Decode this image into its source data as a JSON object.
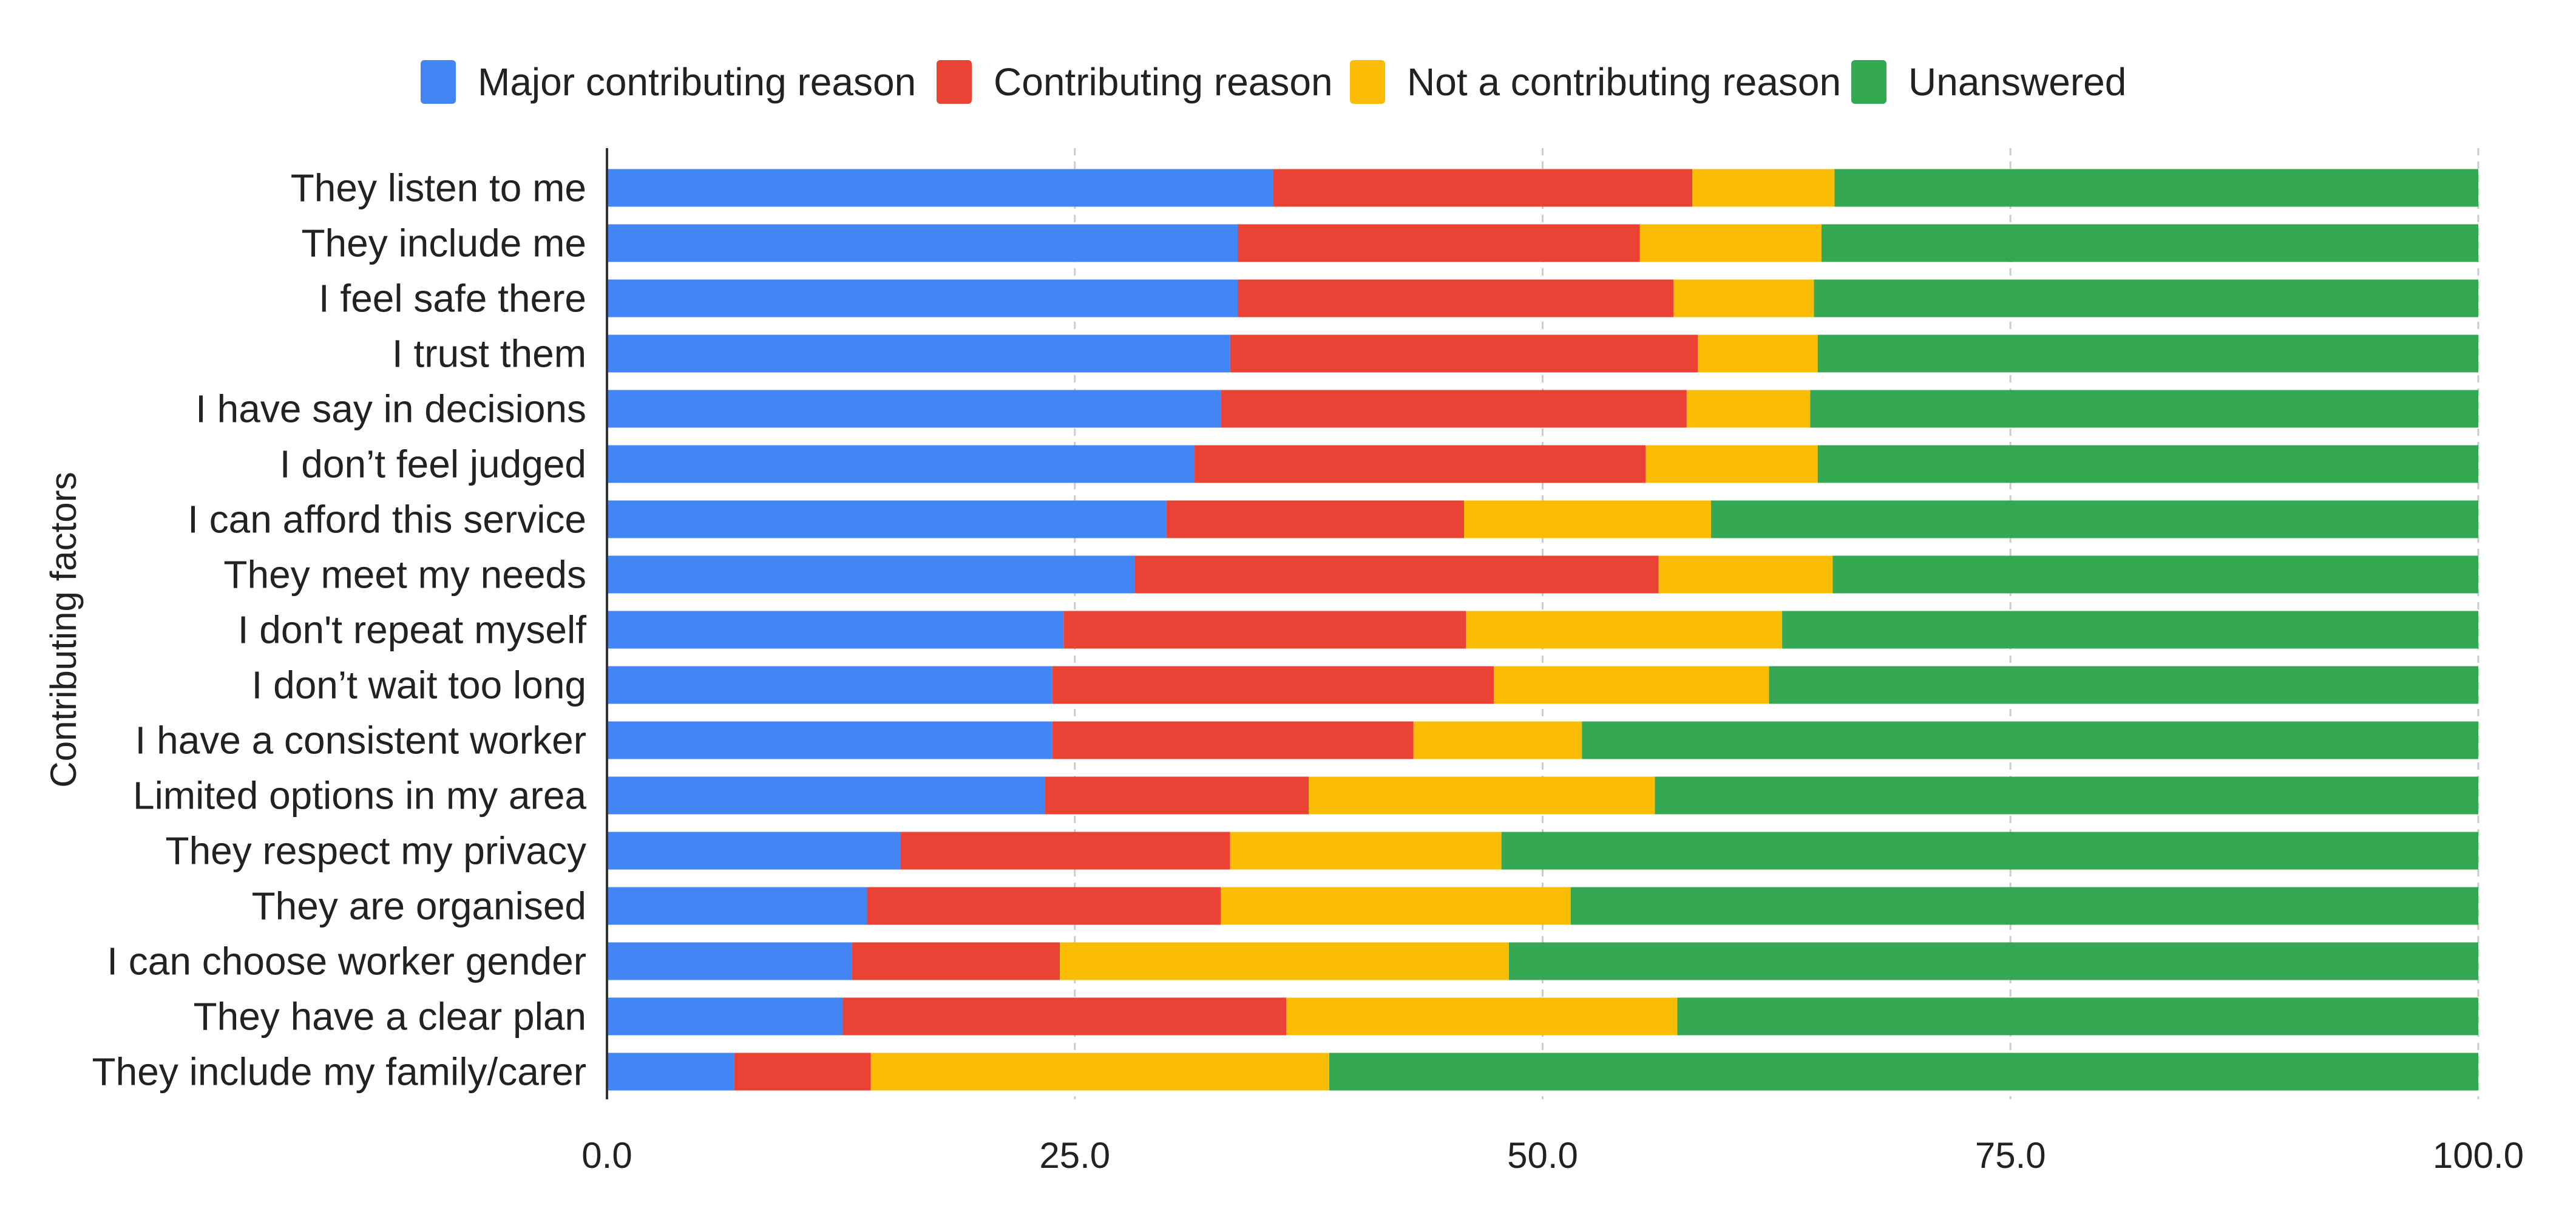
{
  "chart_data": {
    "type": "stacked-bar-horizontal",
    "title": "",
    "ylabel": "Contributing factors",
    "xlabel": "",
    "xlim": [
      0,
      100
    ],
    "x_ticks": [
      "0.0",
      "25.0",
      "50.0",
      "75.0",
      "100.0"
    ],
    "x_tick_values": [
      0,
      25,
      50,
      75,
      100
    ],
    "grid": "vertical dashed",
    "legend_position": "top",
    "categories": [
      "They listen to me",
      "They include me",
      "I feel safe there",
      "I trust them",
      "I have say in decisions",
      "I don’t feel judged",
      "I can afford this service",
      "They meet my needs",
      "I don't repeat myself",
      "I don’t wait too long",
      "I have a consistent worker",
      "Limited options in my area",
      "They respect my privacy",
      "They are organised",
      "I can choose worker gender",
      "They have a clear plan",
      "They include my family/carer"
    ],
    "series": [
      {
        "name": "Major contributing reason",
        "color": "#4285F4",
        "values": [
          35.6,
          33.7,
          33.7,
          33.3,
          32.8,
          31.4,
          29.9,
          28.2,
          24.4,
          23.8,
          23.8,
          23.4,
          15.7,
          13.9,
          13.1,
          12.6,
          6.8
        ]
      },
      {
        "name": "Contributing reason",
        "color": "#EA4335",
        "values": [
          22.4,
          21.5,
          23.3,
          25.0,
          24.9,
          24.1,
          15.9,
          28.0,
          21.5,
          23.6,
          19.3,
          14.1,
          17.6,
          18.9,
          11.1,
          23.7,
          7.3
        ]
      },
      {
        "name": "Not a contributing reason",
        "color": "#FBBC04",
        "values": [
          7.6,
          9.7,
          7.5,
          6.4,
          6.6,
          9.2,
          13.2,
          9.3,
          16.9,
          14.7,
          9.0,
          18.5,
          14.5,
          18.7,
          24.0,
          20.9,
          24.5
        ]
      },
      {
        "name": "Unanswered",
        "color": "#34A853",
        "values": [
          34.4,
          35.1,
          35.5,
          35.3,
          35.7,
          35.3,
          41.0,
          34.5,
          37.2,
          37.9,
          47.9,
          44.0,
          52.2,
          48.5,
          51.8,
          42.8,
          61.4
        ]
      }
    ]
  }
}
